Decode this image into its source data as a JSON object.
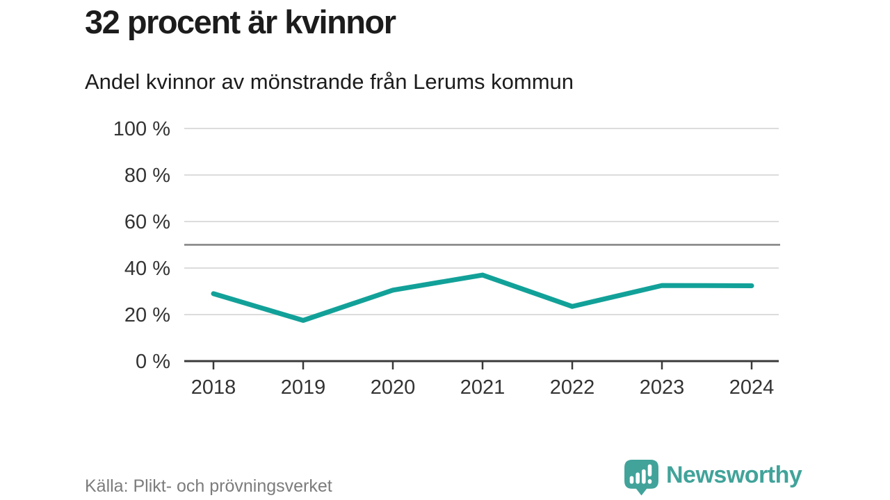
{
  "header": {
    "title": "32 procent är kvinnor",
    "subtitle": "Andel kvinnor av mönstrande från Lerums kommun"
  },
  "footer": {
    "source": "Källa: Plikt- och prövningsverket",
    "brand": "Newsworthy"
  },
  "colors": {
    "line": "#12a199",
    "grid": "#dcdcdc",
    "reference": "#808080",
    "axis": "#3a3a3a",
    "tick_label": "#333333",
    "brand_teal": "#41a39a"
  },
  "chart_data": {
    "type": "line",
    "title": "Andel kvinnor av mönstrande från Lerums kommun",
    "x": [
      2018,
      2019,
      2020,
      2021,
      2022,
      2023,
      2024
    ],
    "series": [
      {
        "name": "Andel kvinnor",
        "values": [
          29,
          17.5,
          30.5,
          37,
          23.5,
          32.5,
          32.4
        ]
      }
    ],
    "xlabel": "",
    "ylabel": "",
    "ylim": [
      0,
      100
    ],
    "y_ticks": [
      0,
      20,
      40,
      60,
      80,
      100
    ],
    "y_tick_labels": [
      "0 %",
      "20 %",
      "40 %",
      "60 %",
      "80 %",
      "100 %"
    ],
    "reference_line": {
      "value": 50
    },
    "grid": true,
    "legend": false
  }
}
